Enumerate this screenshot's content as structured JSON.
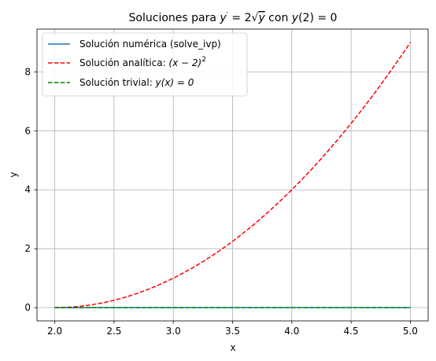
{
  "chart_data": {
    "type": "line",
    "title": {
      "prefix": "Soluciones para ",
      "lhs": "y",
      "prime": "′",
      "eq": " = 2",
      "radical": "√",
      "radicand": "y",
      "middle": " con ",
      "cond": "y",
      "cond_rest": "(2) = 0"
    },
    "xlabel": "x",
    "ylabel": "y",
    "xlim": [
      1.85,
      5.15
    ],
    "ylim": [
      -0.45,
      9.45
    ],
    "xticks": [
      2.0,
      2.5,
      3.0,
      3.5,
      4.0,
      4.5,
      5.0
    ],
    "xtick_labels": [
      "2.0",
      "2.5",
      "3.0",
      "3.5",
      "4.0",
      "4.5",
      "5.0"
    ],
    "yticks": [
      0,
      2,
      4,
      6,
      8
    ],
    "ytick_labels": [
      "0",
      "2",
      "4",
      "6",
      "8"
    ],
    "grid": true,
    "legend_position": "top-left",
    "x": [
      2.0,
      2.25,
      2.5,
      2.75,
      3.0,
      3.25,
      3.5,
      3.75,
      4.0,
      4.25,
      4.5,
      4.75,
      5.0
    ],
    "series": [
      {
        "key": "numeric",
        "legend_text": "Solución numérica (solve_ivp)",
        "color": "#1f77b4",
        "dash": "solid",
        "values": [
          0,
          0,
          0,
          0,
          0,
          0,
          0,
          0,
          0,
          0,
          0,
          0,
          0
        ]
      },
      {
        "key": "analytic",
        "legend_text": "Solución analítica: ",
        "legend_math": "(x − 2)",
        "legend_sup": "2",
        "color": "#ff0000",
        "dash": "dashed",
        "values": [
          0,
          0.0625,
          0.25,
          0.5625,
          1.0,
          1.5625,
          2.25,
          3.0625,
          4.0,
          5.0625,
          6.25,
          7.5625,
          9.0
        ]
      },
      {
        "key": "trivial",
        "legend_text": "Solución trivial: ",
        "legend_math": "y(x) = 0",
        "legend_sup": "",
        "color": "#008000",
        "dash": "dashed",
        "values": [
          0,
          0,
          0,
          0,
          0,
          0,
          0,
          0,
          0,
          0,
          0,
          0,
          0
        ]
      }
    ]
  }
}
